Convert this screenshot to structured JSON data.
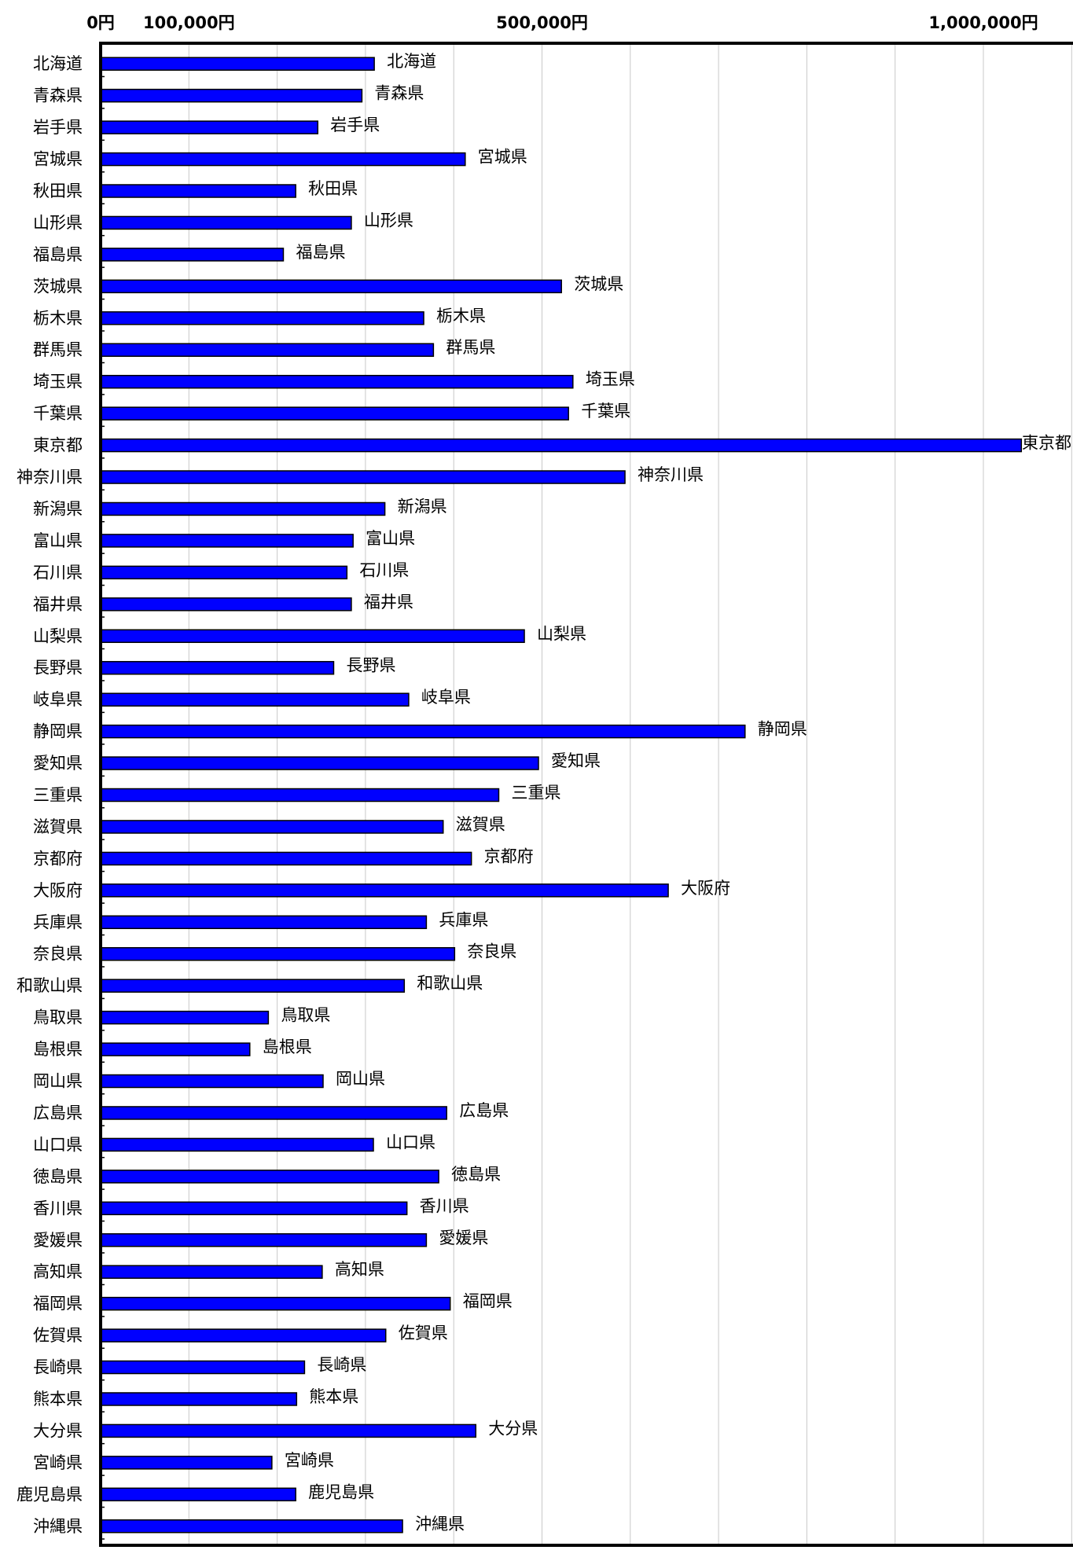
{
  "chart_data": {
    "type": "bar",
    "orientation": "horizontal",
    "title": "",
    "xlabel": "",
    "ylabel": "",
    "xlim": [
      0,
      1000000
    ],
    "x_ticks": [
      {
        "value": 0,
        "label": "0円"
      },
      {
        "value": 100000,
        "label": "100,000円"
      },
      {
        "value": 500000,
        "label": "500,000円"
      },
      {
        "value": 1000000,
        "label": "1,000,000円"
      }
    ],
    "grid_step": 100000,
    "grid": true,
    "legend": "none",
    "bar_color": "#0000ff",
    "categories": [
      "北海道",
      "青森県",
      "岩手県",
      "宮城県",
      "秋田県",
      "山形県",
      "福島県",
      "茨城県",
      "栃木県",
      "群馬県",
      "埼玉県",
      "千葉県",
      "東京都",
      "神奈川県",
      "新潟県",
      "富山県",
      "石川県",
      "福井県",
      "山梨県",
      "長野県",
      "岐阜県",
      "静岡県",
      "愛知県",
      "三重県",
      "滋賀県",
      "京都府",
      "大阪府",
      "兵庫県",
      "奈良県",
      "和歌山県",
      "鳥取県",
      "島根県",
      "岡山県",
      "広島県",
      "山口県",
      "徳島県",
      "香川県",
      "愛媛県",
      "高知県",
      "福岡県",
      "佐賀県",
      "長崎県",
      "熊本県",
      "大分県",
      "宮崎県",
      "鹿児島県",
      "沖縄県"
    ],
    "values": [
      310000,
      296000,
      246000,
      413000,
      221000,
      284000,
      207000,
      522000,
      366000,
      377000,
      535000,
      530000,
      1043000,
      594000,
      322000,
      286000,
      279000,
      284000,
      480000,
      264000,
      349000,
      730000,
      496000,
      451000,
      388000,
      420000,
      643000,
      369000,
      401000,
      344000,
      190000,
      169000,
      252000,
      392000,
      309000,
      383000,
      347000,
      369000,
      251000,
      396000,
      323000,
      231000,
      222000,
      425000,
      194000,
      221000,
      342000
    ],
    "data_labels": [
      "北海道",
      "青森県",
      "岩手県",
      "宮城県",
      "秋田県",
      "山形県",
      "福島県",
      "茨城県",
      "栃木県",
      "群馬県",
      "埼玉県",
      "千葉県",
      "東京都",
      "神奈川県",
      "新潟県",
      "富山県",
      "石川県",
      "福井県",
      "山梨県",
      "長野県",
      "岐阜県",
      "静岡県",
      "愛知県",
      "三重県",
      "滋賀県",
      "京都府",
      "大阪府",
      "兵庫県",
      "奈良県",
      "和歌山県",
      "鳥取県",
      "島根県",
      "岡山県",
      "広島県",
      "山口県",
      "徳島県",
      "香川県",
      "愛媛県",
      "高知県",
      "福岡県",
      "佐賀県",
      "長崎県",
      "熊本県",
      "大分県",
      "宮崎県",
      "鹿児島県",
      "沖縄県"
    ]
  }
}
